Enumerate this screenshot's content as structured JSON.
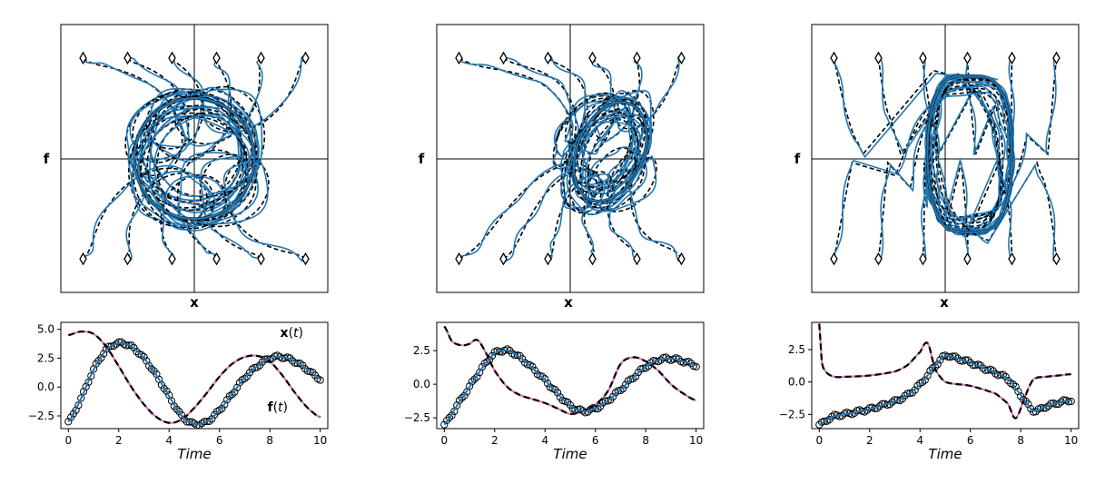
{
  "figure": {
    "colors": {
      "model": "#1f77b4",
      "true_traj": "#000000",
      "fit_pink": "#e377c2",
      "markers": "#000000"
    }
  },
  "chart_data": [
    {
      "type": "line",
      "panel": "phase-portrait-1",
      "xlabel": "x",
      "ylabel": "f",
      "xlim": [
        -3,
        3
      ],
      "ylim": [
        -3,
        3
      ],
      "axes_through_origin": true,
      "initial_markers_x": [
        -2.5,
        -1.5,
        -0.5,
        0.5,
        1.5,
        2.5
      ],
      "initial_markers_y": [
        2.25,
        -2.25
      ],
      "behavior": "spiral converging to a circular limit cycle of radius about 1.3"
    },
    {
      "type": "line",
      "panel": "time-series-1",
      "xlabel": "Time",
      "annotations": [
        "x(t)",
        "f(t)"
      ],
      "xlim": [
        -0.3,
        10.3
      ],
      "ylim": [
        -3.6,
        5.6
      ],
      "xticks": [
        0,
        2,
        4,
        6,
        8,
        10
      ],
      "yticks": [
        -2.5,
        0.0,
        2.5,
        5.0
      ],
      "ytick_labels": [
        "−2.5",
        "0.0",
        "2.5",
        "5.0"
      ],
      "series": [
        {
          "name": "x(t)",
          "x": [
            0,
            0.5,
            1,
            1.5,
            2,
            2.5,
            3,
            3.5,
            4,
            4.5,
            5,
            5.5,
            6,
            6.5,
            7,
            7.5,
            8,
            8.5,
            9,
            9.5,
            10
          ],
          "values": [
            -3.0,
            -1.0,
            1.5,
            3.2,
            3.8,
            3.5,
            2.5,
            1.0,
            -0.8,
            -2.5,
            -3.2,
            -3.0,
            -2.0,
            -0.6,
            0.8,
            1.8,
            2.5,
            2.6,
            2.2,
            1.5,
            0.7
          ]
        },
        {
          "name": "f(t)",
          "x": [
            0,
            0.5,
            1,
            1.5,
            2,
            2.5,
            3,
            3.5,
            4,
            4.5,
            5,
            5.5,
            6,
            6.5,
            7,
            7.5,
            8,
            8.5,
            9,
            9.5,
            10
          ],
          "values": [
            4.5,
            4.8,
            4.6,
            3.5,
            1.8,
            0.0,
            -1.5,
            -2.6,
            -3.1,
            -2.8,
            -1.8,
            -0.5,
            0.9,
            2.0,
            2.6,
            2.7,
            2.2,
            1.0,
            -0.5,
            -1.8,
            -2.6
          ]
        }
      ]
    },
    {
      "type": "line",
      "panel": "phase-portrait-2",
      "xlabel": "x",
      "ylabel": "f",
      "xlim": [
        -3,
        3
      ],
      "ylim": [
        -3,
        3
      ],
      "axes_through_origin": true,
      "initial_markers_x": [
        -2.5,
        -1.5,
        -0.5,
        0.5,
        1.5,
        2.5
      ],
      "initial_markers_y": [
        2.25,
        -2.25
      ],
      "behavior": "trajectories converge to a skewed limit cycle shifted right of the origin"
    },
    {
      "type": "line",
      "panel": "time-series-2",
      "xlabel": "Time",
      "xlim": [
        -0.3,
        10.3
      ],
      "ylim": [
        -3.3,
        4.6
      ],
      "xticks": [
        0,
        2,
        4,
        6,
        8,
        10
      ],
      "yticks": [
        -2.5,
        0.0,
        2.5
      ],
      "ytick_labels": [
        "−2.5",
        "0.0",
        "2.5"
      ],
      "series": [
        {
          "name": "x(t)",
          "x": [
            0,
            0.5,
            1,
            1.5,
            2,
            2.5,
            3,
            3.5,
            4,
            4.5,
            5,
            5.5,
            6,
            6.5,
            7,
            7.5,
            8,
            8.5,
            9,
            9.5,
            10
          ],
          "values": [
            -3.0,
            -1.6,
            -0.2,
            1.2,
            2.3,
            2.5,
            2.0,
            1.2,
            0.3,
            -0.7,
            -1.6,
            -2.0,
            -1.8,
            -1.2,
            -0.4,
            0.5,
            1.3,
            1.8,
            1.9,
            1.7,
            1.4
          ]
        },
        {
          "name": "f(t)",
          "x": [
            0,
            0.3,
            0.7,
            1,
            1.3,
            1.6,
            2,
            2.5,
            3,
            3.5,
            4,
            4.5,
            5,
            5.5,
            6,
            6.5,
            7,
            7.5,
            8,
            8.5,
            9,
            9.5,
            10
          ],
          "values": [
            4.3,
            3.2,
            2.9,
            3.0,
            3.3,
            2.5,
            1.0,
            -0.2,
            -0.8,
            -1.1,
            -1.4,
            -1.8,
            -2.2,
            -2.0,
            -1.5,
            -0.5,
            1.5,
            2.0,
            1.7,
            1.0,
            0.0,
            -0.7,
            -1.2
          ]
        }
      ]
    },
    {
      "type": "line",
      "panel": "phase-portrait-3",
      "xlabel": "x",
      "ylabel": "f",
      "xlim": [
        -3,
        3
      ],
      "ylim": [
        -3,
        3
      ],
      "axes_through_origin": true,
      "initial_markers_x": [
        -2.5,
        -1.5,
        -0.5,
        0.5,
        1.5,
        2.5
      ],
      "initial_markers_y": [
        2.25,
        -2.25
      ],
      "behavior": "relaxation-type limit cycle with fast jumps near f = 0"
    },
    {
      "type": "line",
      "panel": "time-series-3",
      "xlabel": "Time",
      "xlim": [
        -0.3,
        10.3
      ],
      "ylim": [
        -3.6,
        4.6
      ],
      "xticks": [
        0,
        2,
        4,
        6,
        8,
        10
      ],
      "yticks": [
        -2.5,
        0.0,
        2.5
      ],
      "ytick_labels": [
        "−2.5",
        "0.0",
        "2.5"
      ],
      "series": [
        {
          "name": "x(t)",
          "x": [
            0,
            0.5,
            1,
            1.5,
            2,
            2.5,
            3,
            3.5,
            4,
            4.5,
            5,
            5.5,
            6,
            6.5,
            7,
            7.5,
            8,
            8.5,
            9,
            9.5,
            10
          ],
          "values": [
            -3.3,
            -2.7,
            -2.5,
            -2.3,
            -2.1,
            -1.8,
            -1.5,
            -1.0,
            -0.2,
            1.0,
            2.0,
            1.8,
            1.5,
            1.1,
            0.7,
            0.2,
            -1.0,
            -2.2,
            -1.9,
            -1.6,
            -1.4
          ]
        },
        {
          "name": "f(t)",
          "x": [
            0,
            0.1,
            0.3,
            0.6,
            1,
            2,
            3,
            3.5,
            4,
            4.3,
            4.6,
            5,
            6,
            7,
            7.5,
            7.8,
            8.2,
            8.5,
            9,
            9.5,
            10
          ],
          "values": [
            4.5,
            1.5,
            0.7,
            0.4,
            0.4,
            0.5,
            0.8,
            1.3,
            2.3,
            3.0,
            1.0,
            0.0,
            -0.3,
            -0.9,
            -1.7,
            -2.8,
            -1.0,
            0.2,
            0.4,
            0.5,
            0.6
          ]
        }
      ]
    }
  ]
}
